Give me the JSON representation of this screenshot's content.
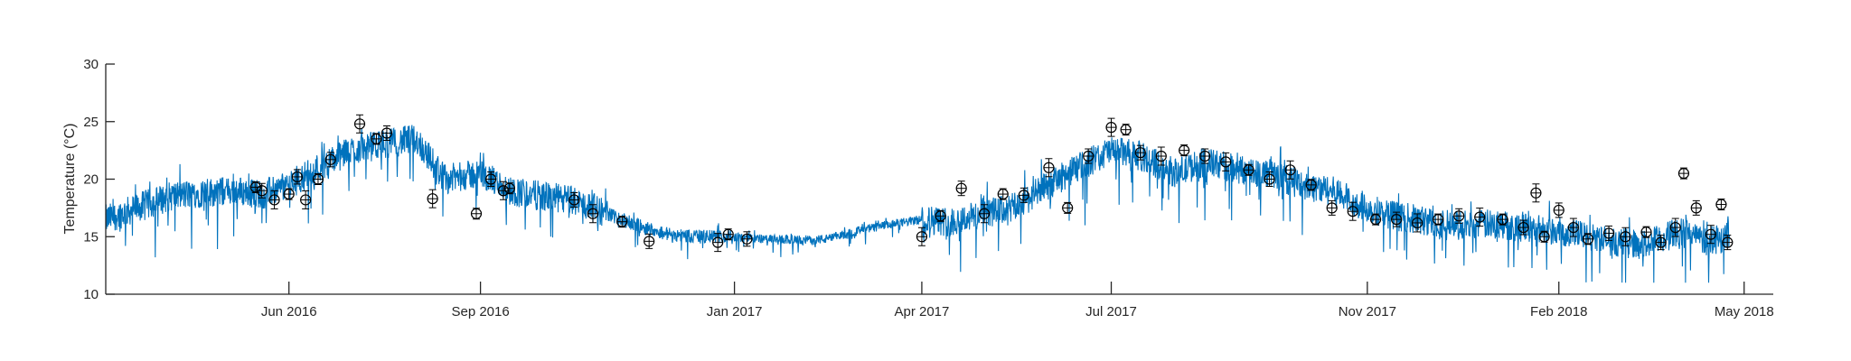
{
  "chart_data": {
    "type": "line",
    "title": "",
    "xlabel": "",
    "ylabel": "Temperature (°C)",
    "ylim": [
      10,
      30
    ],
    "xlim": [
      "2016-03-05",
      "2018-05-15"
    ],
    "grid": false,
    "x_ticks": [
      {
        "date": "2016-06-01",
        "label": "Jun 2016"
      },
      {
        "date": "2016-09-01",
        "label": "Sep 2016"
      },
      {
        "date": "2017-01-01",
        "label": "Jan 2017"
      },
      {
        "date": "2017-04-01",
        "label": "Apr 2017"
      },
      {
        "date": "2017-07-01",
        "label": "Jul 2017"
      },
      {
        "date": "2017-11-01",
        "label": "Nov 2017"
      },
      {
        "date": "2018-02-01",
        "label": "Feb 2018"
      },
      {
        "date": "2018-05-01",
        "label": "May 2018"
      }
    ],
    "y_ticks": [
      10,
      15,
      20,
      25,
      30
    ],
    "colors": {
      "series": "#0072BD",
      "markers": "#000000",
      "axes": "#262626"
    },
    "series": [
      {
        "style": "line",
        "x": [
          "2016-03-05",
          "2016-03-20",
          "2016-04-05",
          "2016-04-20",
          "2016-05-05",
          "2016-05-20",
          "2016-06-01",
          "2016-06-15",
          "2016-07-01",
          "2016-07-15",
          "2016-08-01",
          "2016-08-15",
          "2016-09-01",
          "2016-09-15",
          "2016-10-01",
          "2016-10-15",
          "2016-11-01",
          "2016-11-15",
          "2016-12-01",
          "2016-12-15",
          "2017-01-01",
          "2017-01-15",
          "2017-02-01",
          "2017-02-15",
          "2017-03-01",
          "2017-03-15",
          "2017-04-01",
          "2017-04-15",
          "2017-05-01",
          "2017-05-15",
          "2017-06-01",
          "2017-06-15",
          "2017-07-01",
          "2017-07-15",
          "2017-08-01",
          "2017-08-15",
          "2017-09-01",
          "2017-09-15",
          "2017-10-01",
          "2017-10-15",
          "2017-11-01",
          "2017-11-15",
          "2017-12-01",
          "2017-12-15",
          "2018-01-01",
          "2018-01-15",
          "2018-02-01",
          "2018-02-15",
          "2018-03-01",
          "2018-03-15",
          "2018-04-01",
          "2018-04-15",
          "2018-04-24"
        ],
        "y": [
          16.5,
          17.5,
          18.5,
          18.8,
          19.0,
          18.7,
          19.5,
          21.0,
          22.5,
          23.0,
          23.5,
          20.0,
          20.5,
          19.0,
          18.5,
          18.2,
          17.0,
          16.0,
          15.2,
          15.0,
          15.0,
          14.8,
          14.7,
          14.8,
          15.5,
          16.0,
          16.5,
          16.3,
          17.0,
          17.5,
          19.5,
          21.0,
          22.5,
          22.0,
          20.5,
          21.5,
          20.8,
          20.5,
          19.5,
          19.0,
          17.5,
          16.8,
          16.3,
          16.0,
          16.1,
          15.8,
          15.5,
          15.0,
          14.5,
          14.3,
          15.5,
          14.5,
          15.2
        ]
      },
      {
        "style": "markers-with-errorbars",
        "x": [
          "2016-05-16",
          "2016-05-19",
          "2016-05-25",
          "2016-06-01",
          "2016-06-05",
          "2016-06-09",
          "2016-06-15",
          "2016-06-21",
          "2016-07-05",
          "2016-07-13",
          "2016-07-18",
          "2016-08-09",
          "2016-08-30",
          "2016-09-06",
          "2016-09-12",
          "2016-09-15",
          "2016-10-16",
          "2016-10-25",
          "2016-11-08",
          "2016-11-21",
          "2016-12-24",
          "2016-12-29",
          "2017-01-07",
          "2017-04-01",
          "2017-04-10",
          "2017-04-20",
          "2017-05-01",
          "2017-05-10",
          "2017-05-20",
          "2017-06-01",
          "2017-06-10",
          "2017-06-20",
          "2017-07-01",
          "2017-07-08",
          "2017-07-15",
          "2017-07-25",
          "2017-08-05",
          "2017-08-15",
          "2017-08-25",
          "2017-09-05",
          "2017-09-15",
          "2017-09-25",
          "2017-10-05",
          "2017-10-15",
          "2017-10-25",
          "2017-11-05",
          "2017-11-15",
          "2017-11-25",
          "2017-12-05",
          "2017-12-15",
          "2017-12-25",
          "2018-01-05",
          "2018-01-15",
          "2018-01-21",
          "2018-01-25",
          "2018-02-01",
          "2018-02-08",
          "2018-02-15",
          "2018-02-25",
          "2018-03-05",
          "2018-03-15",
          "2018-03-22",
          "2018-03-29",
          "2018-04-02",
          "2018-04-08",
          "2018-04-15",
          "2018-04-20",
          "2018-04-23"
        ],
        "y": [
          19.3,
          19.0,
          18.2,
          18.7,
          20.2,
          18.2,
          20.0,
          21.7,
          24.8,
          23.5,
          24.0,
          18.3,
          17.0,
          20.0,
          19.0,
          19.2,
          18.2,
          17.0,
          16.3,
          14.6,
          14.5,
          15.2,
          14.8,
          15.0,
          16.8,
          19.2,
          17.0,
          18.7,
          18.6,
          21.0,
          17.5,
          22.0,
          24.5,
          24.3,
          22.3,
          22.0,
          22.5,
          22.0,
          21.5,
          20.8,
          20.0,
          20.8,
          19.5,
          17.5,
          17.2,
          16.5,
          16.5,
          16.2,
          16.5,
          16.8,
          16.7,
          16.5,
          15.8,
          18.8,
          15.0,
          17.3,
          15.8,
          14.8,
          15.3,
          15.0,
          15.4,
          14.5,
          15.8,
          20.5,
          17.5,
          15.2,
          17.8,
          14.5
        ]
      }
    ]
  }
}
